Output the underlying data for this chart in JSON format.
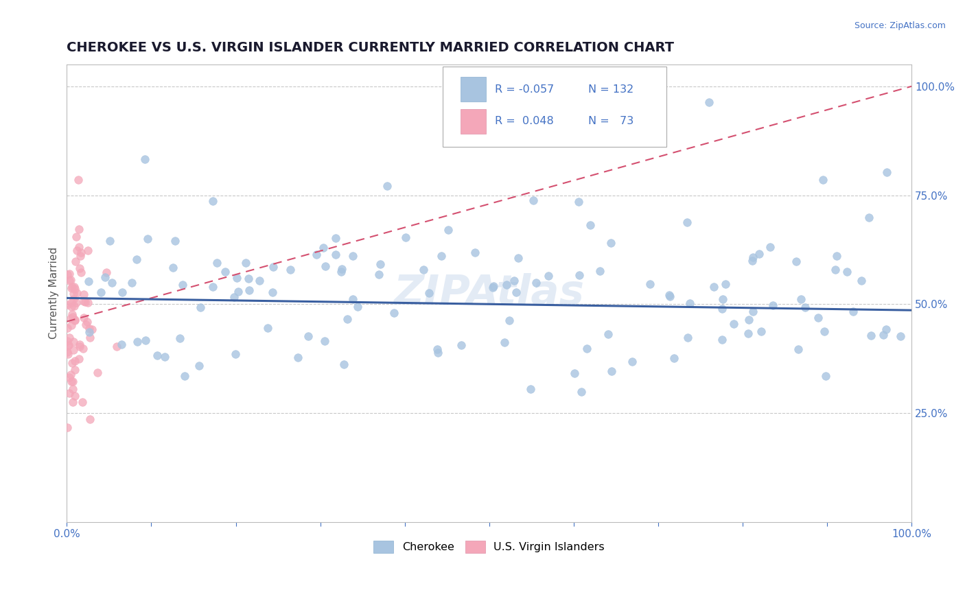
{
  "title": "CHEROKEE VS U.S. VIRGIN ISLANDER CURRENTLY MARRIED CORRELATION CHART",
  "source": "Source: ZipAtlas.com",
  "ylabel": "Currently Married",
  "xlabel": "",
  "xlim": [
    0.0,
    1.0
  ],
  "ylim": [
    0.0,
    1.05
  ],
  "ytick_positions": [
    0.25,
    0.5,
    0.75,
    1.0
  ],
  "ytick_labels": [
    "25.0%",
    "50.0%",
    "75.0%",
    "100.0%"
  ],
  "cherokee_color": "#a8c4e0",
  "cherokee_line_color": "#3a5fa0",
  "virgin_color": "#f4a7b9",
  "virgin_line_color": "#d45070",
  "background_color": "#ffffff",
  "legend_R_cherokee": "-0.057",
  "legend_N_cherokee": "132",
  "legend_R_virgin": "0.048",
  "legend_N_virgin": "73",
  "title_fontsize": 14,
  "label_fontsize": 11,
  "tick_fontsize": 11,
  "watermark": "ZIPAtlas",
  "cherokee_R": -0.057,
  "cherokee_N": 132,
  "virgin_R": 0.048,
  "virgin_N": 73,
  "cherokee_seed": 42,
  "virgin_seed": 7
}
